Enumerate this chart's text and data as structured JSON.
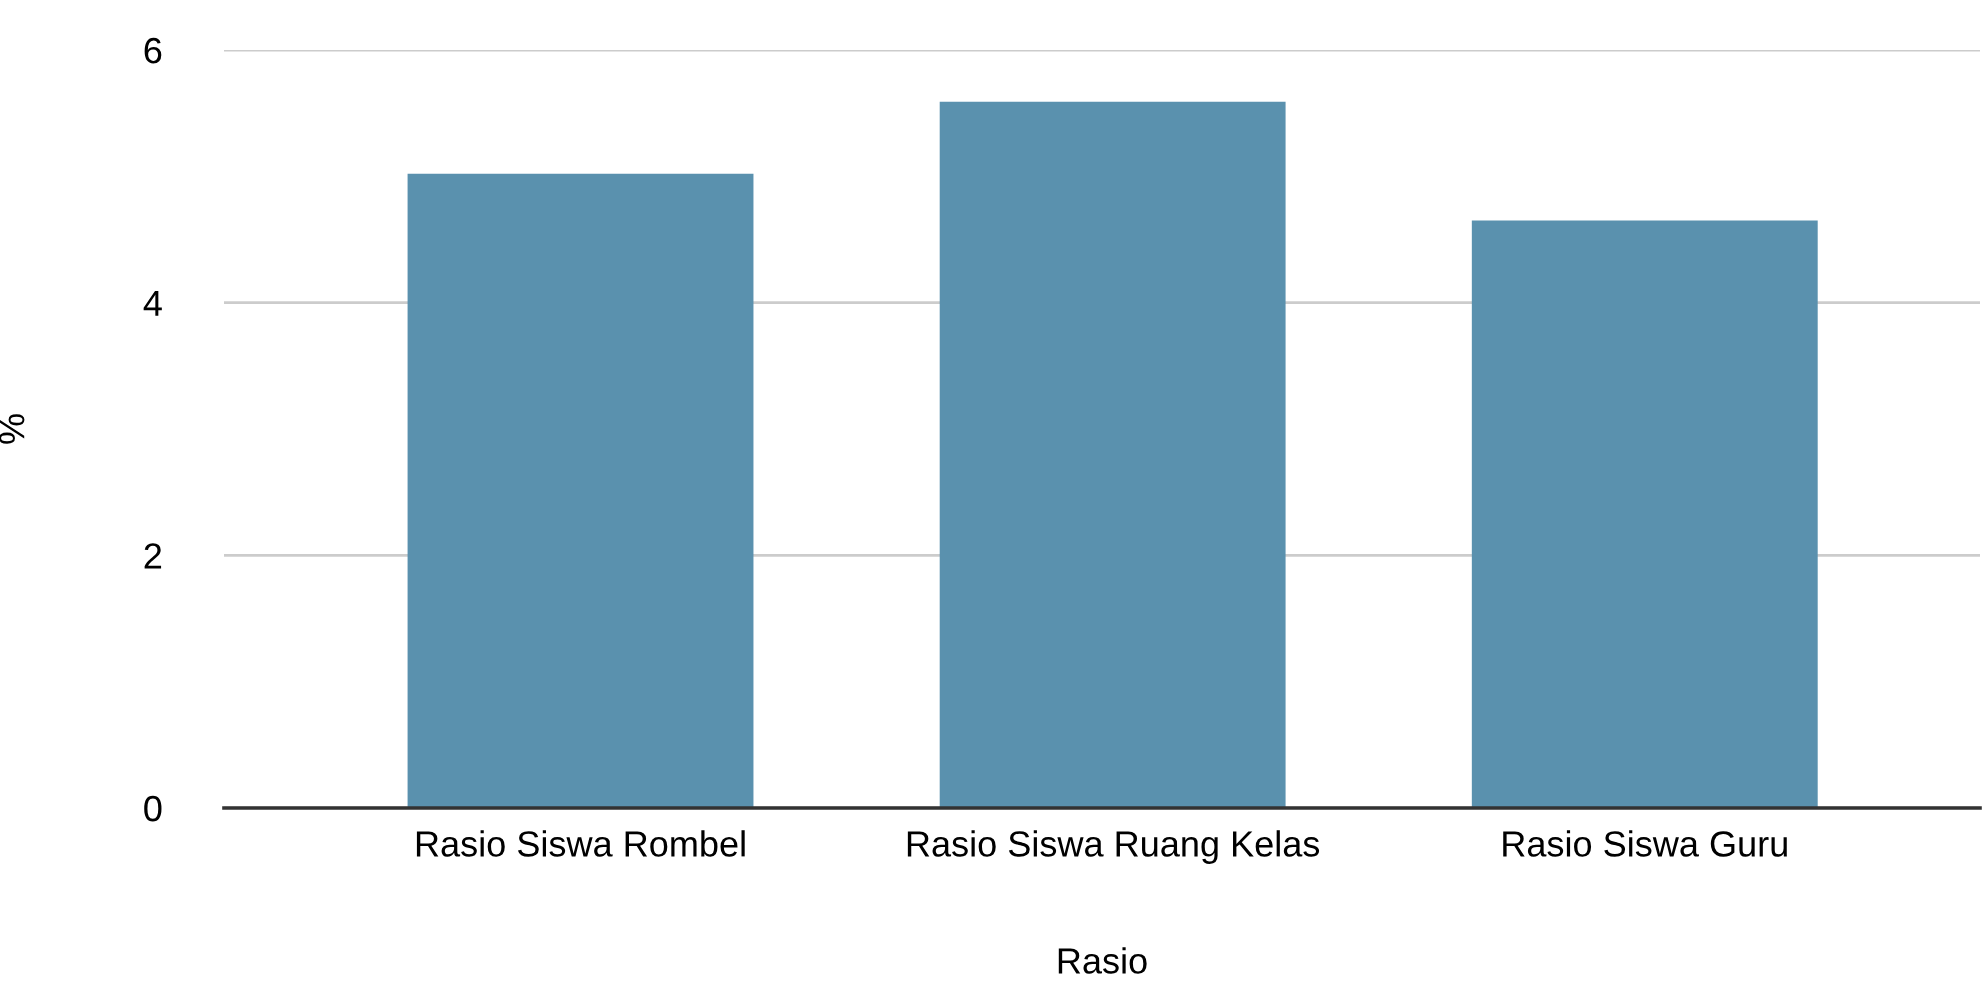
{
  "chart_data": {
    "type": "bar",
    "xlabel": "Rasio",
    "ylabel": "%",
    "categories": [
      "Rasio Siswa Rombel",
      "Rasio Siswa Ruang Kelas",
      "Rasio Siswa Guru"
    ],
    "values": [
      5.02,
      5.59,
      4.65
    ],
    "color": "#5a91ae",
    "ylim": [
      0,
      6
    ],
    "yticks": [
      0,
      2,
      4,
      6
    ],
    "grid": "y"
  }
}
